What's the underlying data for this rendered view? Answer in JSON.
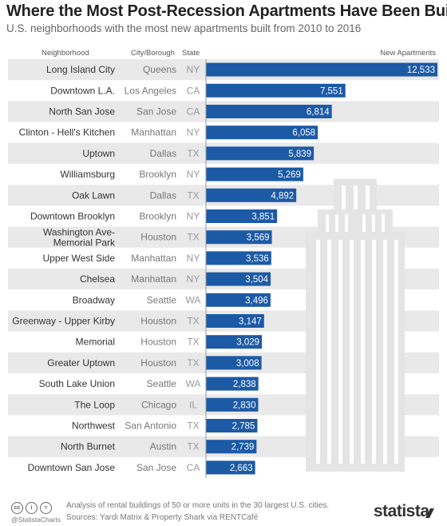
{
  "title": "Where the Most Post-Recession Apartments Have Been Built",
  "subtitle": "U.S. neighborhoods with the most new apartments built from 2010 to 2016",
  "headers": {
    "neighborhood": "Neighborhood",
    "city": "City/Borough",
    "state": "State",
    "value": "New Apartments"
  },
  "chart_data": {
    "type": "bar",
    "orientation": "horizontal",
    "bar_color": "#1c5aa6",
    "stripe_color": "#e9e9e9",
    "xlim": [
      0,
      12533
    ],
    "grid": false,
    "categories": [
      {
        "neighborhood": [
          "Long Island City"
        ],
        "city": "Queens",
        "state": "NY",
        "value": 12533,
        "label": "12,533"
      },
      {
        "neighborhood": [
          "Downtown L.A."
        ],
        "city": "Los Angeles",
        "state": "CA",
        "value": 7551,
        "label": "7,551"
      },
      {
        "neighborhood": [
          "North San Jose"
        ],
        "city": "San Jose",
        "state": "CA",
        "value": 6814,
        "label": "6,814"
      },
      {
        "neighborhood": [
          "Clinton - Hell's Kitchen"
        ],
        "city": "Manhattan",
        "state": "NY",
        "value": 6058,
        "label": "6,058"
      },
      {
        "neighborhood": [
          "Uptown"
        ],
        "city": "Dallas",
        "state": "TX",
        "value": 5839,
        "label": "5,839"
      },
      {
        "neighborhood": [
          "Williamsburg"
        ],
        "city": "Brooklyn",
        "state": "NY",
        "value": 5269,
        "label": "5,269"
      },
      {
        "neighborhood": [
          "Oak Lawn"
        ],
        "city": "Dallas",
        "state": "TX",
        "value": 4892,
        "label": "4,892"
      },
      {
        "neighborhood": [
          "Downtown Brooklyn"
        ],
        "city": "Brooklyn",
        "state": "NY",
        "value": 3851,
        "label": "3,851"
      },
      {
        "neighborhood": [
          "Washington Ave-",
          "Memorial Park"
        ],
        "city": "Houston",
        "state": "TX",
        "value": 3569,
        "label": "3,569"
      },
      {
        "neighborhood": [
          "Upper West Side"
        ],
        "city": "Manhattan",
        "state": "NY",
        "value": 3536,
        "label": "3,536"
      },
      {
        "neighborhood": [
          "Chelsea"
        ],
        "city": "Manhattan",
        "state": "NY",
        "value": 3504,
        "label": "3,504"
      },
      {
        "neighborhood": [
          "Broadway"
        ],
        "city": "Seattle",
        "state": "WA",
        "value": 3496,
        "label": "3,496"
      },
      {
        "neighborhood": [
          "Greenway - Upper Kirby"
        ],
        "city": "Houston",
        "state": "TX",
        "value": 3147,
        "label": "3,147"
      },
      {
        "neighborhood": [
          "Memorial"
        ],
        "city": "Houston",
        "state": "TX",
        "value": 3029,
        "label": "3,029"
      },
      {
        "neighborhood": [
          "Greater Uptown"
        ],
        "city": "Houston",
        "state": "TX",
        "value": 3008,
        "label": "3,008"
      },
      {
        "neighborhood": [
          "South Lake Union"
        ],
        "city": "Seattle",
        "state": "WA",
        "value": 2838,
        "label": "2,838"
      },
      {
        "neighborhood": [
          "The Loop"
        ],
        "city": "Chicago",
        "state": "IL",
        "value": 2830,
        "label": "2,830"
      },
      {
        "neighborhood": [
          "Northwest"
        ],
        "city": "San Antonio",
        "state": "TX",
        "value": 2785,
        "label": "2,785"
      },
      {
        "neighborhood": [
          "North Burnet"
        ],
        "city": "Austin",
        "state": "TX",
        "value": 2739,
        "label": "2,739"
      },
      {
        "neighborhood": [
          "Downtown San Jose"
        ],
        "city": "San Jose",
        "state": "CA",
        "value": 2663,
        "label": "2,663"
      }
    ]
  },
  "footer": {
    "handle": "@StatistaCharts",
    "note_line1": "Analysis of rental buildings of 50 or more units in the 30 largest U.S. cities.",
    "note_line2": "Sources: Yardi Matrix & Property Shark via RENTCafé",
    "brand": "statista",
    "cc_icons": [
      "cc",
      "i",
      "="
    ]
  }
}
